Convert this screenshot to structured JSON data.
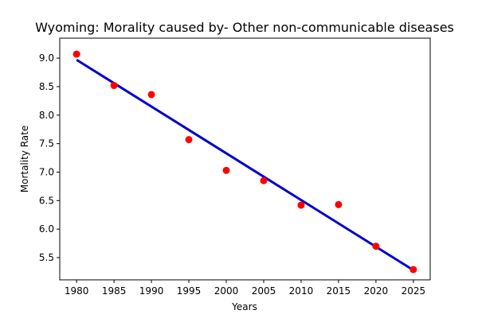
{
  "chart_data": {
    "type": "scatter",
    "title": "Wyoming: Morality caused by- Other non-communicable diseases",
    "xlabel": "Years",
    "ylabel": "Mortality Rate",
    "xlim": [
      1977.75,
      2027.25
    ],
    "ylim": [
      5.11,
      9.35
    ],
    "xticks": [
      1980,
      1985,
      1990,
      1995,
      2000,
      2005,
      2010,
      2015,
      2020,
      2025
    ],
    "yticks": [
      5.5,
      6.0,
      6.5,
      7.0,
      7.5,
      8.0,
      8.5,
      9.0
    ],
    "grid": false,
    "series": [
      {
        "kind": "points",
        "color": "#ff0000",
        "x": [
          1980,
          1985,
          1990,
          1995,
          2000,
          2005,
          2010,
          2015,
          2020,
          2025
        ],
        "y": [
          9.07,
          8.52,
          8.36,
          7.57,
          7.03,
          6.85,
          6.42,
          6.43,
          5.7,
          5.29
        ]
      },
      {
        "kind": "trend-line",
        "color": "#0000cc",
        "x": [
          1980,
          2025
        ],
        "y": [
          8.97,
          5.28
        ]
      }
    ]
  }
}
